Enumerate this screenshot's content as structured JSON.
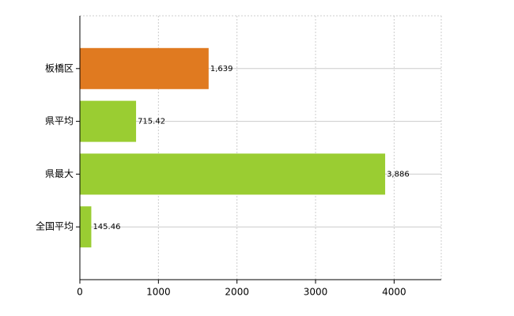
{
  "chart_data": {
    "type": "bar",
    "orientation": "horizontal",
    "categories": [
      "板橋区",
      "県平均",
      "県最大",
      "全国平均"
    ],
    "values": [
      1639,
      715.42,
      3886,
      145.46
    ],
    "value_labels": [
      "1,639",
      "715.42",
      "3,886",
      "145.46"
    ],
    "colors": [
      "#e07a20",
      "#9acd32",
      "#9acd32",
      "#9acd32"
    ],
    "xlim": [
      0,
      4600
    ],
    "xticks": [
      0,
      1000,
      2000,
      3000,
      4000
    ],
    "grid": true
  }
}
